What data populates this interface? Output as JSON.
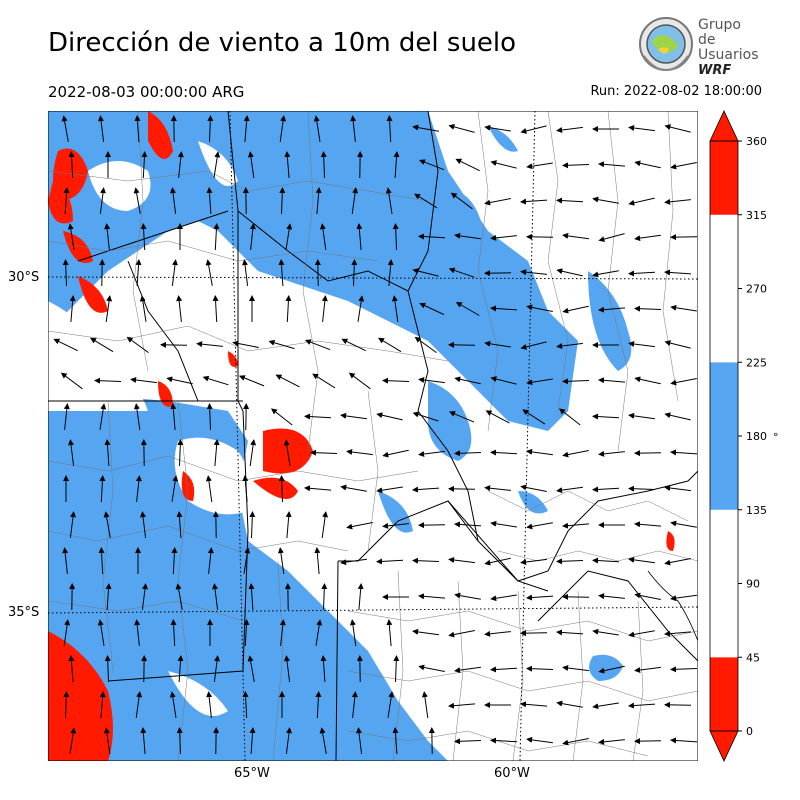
{
  "header": {
    "title": "Dirección de viento a 10m del suelo",
    "valid_time": "2022-08-03 00:00:00 ARG",
    "run_time": "Run: 2022-08-02 18:00:00"
  },
  "logo": {
    "line1": "Grupo de",
    "line2": "Usuarios",
    "line3": "WRF"
  },
  "map": {
    "lat_labels": [
      "30°S",
      "35°S"
    ],
    "lon_labels": [
      "65°W",
      "60°W"
    ],
    "colors": {
      "north": "#ff1a00",
      "south": "#56a5f0",
      "other": "#ffffff",
      "border": "#000000"
    }
  },
  "colorbar": {
    "ticks": [
      "0",
      "45",
      "90",
      "135",
      "180",
      "225",
      "270",
      "315",
      "360"
    ],
    "unit": "°",
    "segments": [
      {
        "from": 0,
        "to": 45,
        "color": "#ff1a00"
      },
      {
        "from": 45,
        "to": 135,
        "color": "#ffffff"
      },
      {
        "from": 135,
        "to": 225,
        "color": "#56a5f0"
      },
      {
        "from": 225,
        "to": 315,
        "color": "#ffffff"
      },
      {
        "from": 315,
        "to": 360,
        "color": "#ff1a00"
      }
    ]
  }
}
